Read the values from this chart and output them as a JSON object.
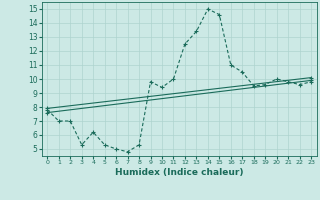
{
  "xlabel": "Humidex (Indice chaleur)",
  "ylabel": "",
  "xlim": [
    -0.5,
    23.5
  ],
  "ylim": [
    4.5,
    15.5
  ],
  "yticks": [
    5,
    6,
    7,
    8,
    9,
    10,
    11,
    12,
    13,
    14,
    15
  ],
  "xticks": [
    0,
    1,
    2,
    3,
    4,
    5,
    6,
    7,
    8,
    9,
    10,
    11,
    12,
    13,
    14,
    15,
    16,
    17,
    18,
    19,
    20,
    21,
    22,
    23
  ],
  "background_color": "#cce9e5",
  "line_color": "#1a6b5a",
  "grid_color": "#aed4cf",
  "line1_x": [
    0,
    1,
    2,
    3,
    4,
    5,
    6,
    7,
    8,
    9,
    10,
    11,
    12,
    13,
    14,
    15,
    16,
    17,
    18,
    19,
    20,
    21,
    22,
    23
  ],
  "line1_y": [
    7.8,
    7.0,
    7.0,
    5.3,
    6.2,
    5.3,
    5.0,
    4.8,
    5.3,
    9.8,
    9.4,
    10.0,
    12.5,
    13.4,
    15.0,
    14.6,
    11.0,
    10.5,
    9.5,
    9.6,
    10.0,
    9.8,
    9.6,
    9.8
  ],
  "line2_x": [
    0,
    23
  ],
  "line2_y": [
    7.6,
    9.9
  ],
  "line3_x": [
    0,
    23
  ],
  "line3_y": [
    7.9,
    10.1
  ]
}
